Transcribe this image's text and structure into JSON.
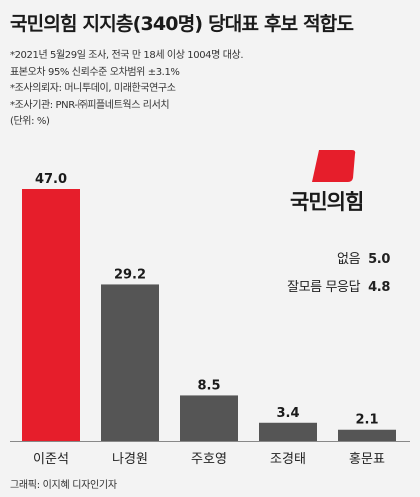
{
  "title": "국민의힘 지지층(340명) 당대표 후보 적합도",
  "notes": [
    "*2021년 5월29일 조사, 전국 만 18세 이상 1004명 대상.",
    "표본오차 95% 신뢰수준 오차범위 ±3.1%",
    "*조사의뢰자: 머니투데이, 미래한국연구소",
    "*조사기관: PNR-㈜피플네트웍스 리서치",
    "(단위: %)"
  ],
  "party_logo": {
    "name": "국민의힘",
    "color": "#e61e2b"
  },
  "side_stats": [
    {
      "label": "없음",
      "value": "5.0"
    },
    {
      "label": "잘모름 무응답",
      "value": "4.8"
    }
  ],
  "credit": "그래픽: 이지혜 디자인기자",
  "colors": {
    "highlight": "#e61e2b",
    "bar": "#555555"
  },
  "chart_data": {
    "type": "bar",
    "categories": [
      "이준석",
      "나경원",
      "주호영",
      "조경태",
      "홍문표"
    ],
    "values": [
      47.0,
      29.2,
      8.5,
      3.4,
      2.1
    ],
    "value_labels": [
      "47.0",
      "29.2",
      "8.5",
      "3.4",
      "2.1"
    ],
    "highlight_index": 0,
    "ylim": [
      0,
      47.0
    ],
    "grid": false
  }
}
